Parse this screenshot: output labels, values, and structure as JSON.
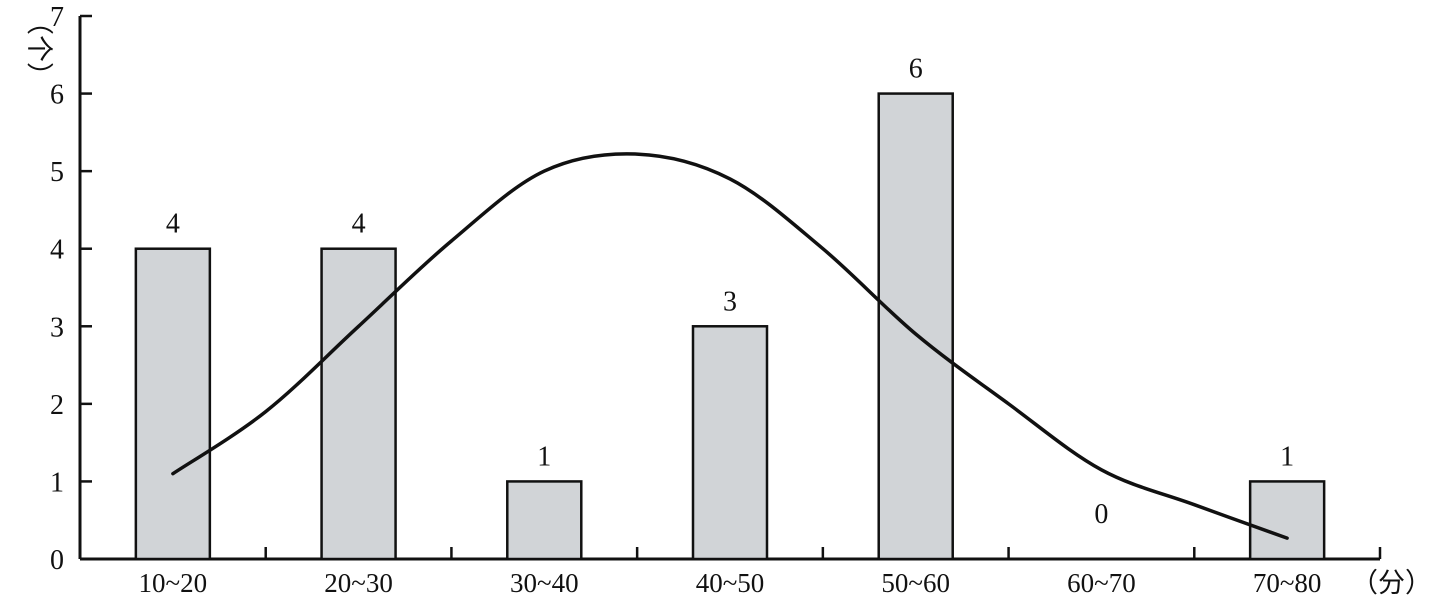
{
  "chart_data": {
    "type": "bar",
    "title": "",
    "xlabel": "（分）",
    "ylabel": "（个）",
    "ylim": [
      0,
      7
    ],
    "yticks": [
      "0",
      "1",
      "2",
      "3",
      "4",
      "5",
      "6",
      "7"
    ],
    "categories": [
      "10~20",
      "20~30",
      "30~40",
      "40~50",
      "50~60",
      "60~70",
      "70~80"
    ],
    "values": [
      4,
      4,
      1,
      3,
      6,
      0,
      1
    ],
    "value_labels": [
      "4",
      "4",
      "1",
      "3",
      "6",
      "0",
      "1"
    ],
    "curve": [
      {
        "x": 15,
        "y": 1.1
      },
      {
        "x": 20,
        "y": 1.9
      },
      {
        "x": 25,
        "y": 3.0
      },
      {
        "x": 30,
        "y": 4.1
      },
      {
        "x": 35,
        "y": 5.0
      },
      {
        "x": 40,
        "y": 5.22
      },
      {
        "x": 45,
        "y": 4.9
      },
      {
        "x": 50,
        "y": 4.0
      },
      {
        "x": 55,
        "y": 2.9
      },
      {
        "x": 60,
        "y": 2.0
      },
      {
        "x": 65,
        "y": 1.15
      },
      {
        "x": 70,
        "y": 0.7
      },
      {
        "x": 75,
        "y": 0.27
      }
    ],
    "colors": {
      "bar_fill": "#d1d4d7",
      "bar_stroke": "#111111",
      "curve": "#111111",
      "axis": "#111111"
    },
    "grid": false,
    "legend": "none"
  }
}
